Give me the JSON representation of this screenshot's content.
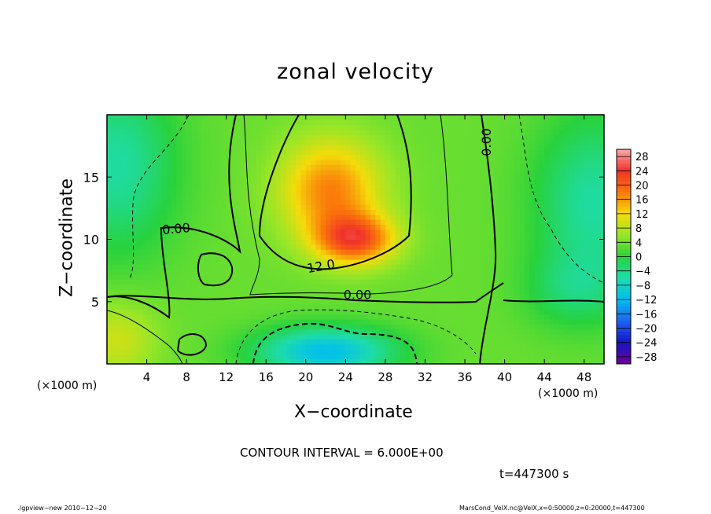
{
  "chart_data": {
    "type": "heatmap",
    "title": "zonal velocity",
    "xlabel": "X−coordinate",
    "ylabel": "Z−coordinate",
    "x_unit_label": "(×1000 m)",
    "xlim": [
      0,
      50
    ],
    "ylim": [
      0,
      20
    ],
    "x_ticks": [
      4,
      8,
      12,
      16,
      20,
      24,
      28,
      32,
      36,
      40,
      44,
      48
    ],
    "y_ticks": [
      5,
      10,
      15
    ],
    "colorbar_ticks": [
      "28",
      "24",
      "20",
      "16",
      "12",
      "8",
      "4",
      "0",
      "−4",
      "−8",
      "−12",
      "−16",
      "−20",
      "−24",
      "−28"
    ],
    "colorbar_range": [
      -30,
      30
    ],
    "contour_labels": [
      {
        "text": "0.00",
        "x": 7.0,
        "y": 10.5,
        "angle": -5
      },
      {
        "text": "12.0",
        "x": 21.6,
        "y": 7.5,
        "angle": -10
      },
      {
        "text": "0.00",
        "x": 25.2,
        "y": 5.2,
        "angle": 0
      },
      {
        "text": "0.00",
        "x": 38.6,
        "y": 17.8,
        "angle": -90
      }
    ],
    "contour_interval": "CONTOUR INTERVAL = 6.000E+00",
    "time_label": "t=447300 s",
    "field_features": [
      {
        "name": "jet core (upper)",
        "x": 22.5,
        "z": 14,
        "value": 14,
        "sx": 5,
        "sz": 4
      },
      {
        "name": "jet core (max)",
        "x": 25,
        "z": 10,
        "value": 17,
        "sx": 4,
        "sz": 2
      },
      {
        "name": "low-level reversed flow",
        "x": 22,
        "z": 1,
        "value": -15,
        "sx": 7,
        "sz": 2
      }
    ]
  },
  "footer": {
    "left": "./gpview−new   2010−12−20",
    "right": "MarsCond_VelX.nc@VelX,x=0:50000,z=0:20000,t=447300"
  }
}
